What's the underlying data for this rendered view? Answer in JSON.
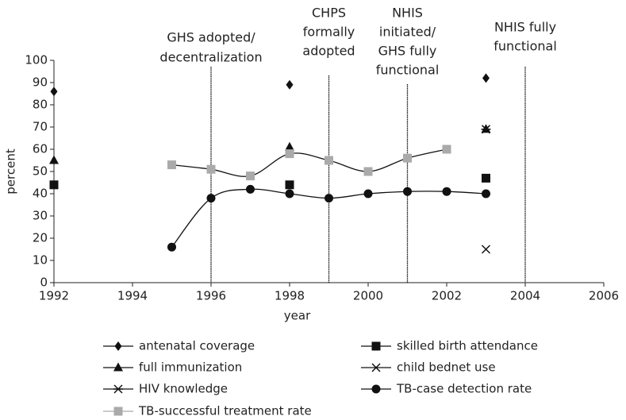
{
  "chart_data": {
    "type": "line",
    "xlabel": "year",
    "ylabel": "percent",
    "xlim": [
      1992,
      2006
    ],
    "xticks": [
      1992,
      1994,
      1996,
      1998,
      2000,
      2002,
      2004,
      2006
    ],
    "ylim": [
      0,
      100
    ],
    "yticks": [
      0,
      10,
      20,
      30,
      40,
      50,
      60,
      70,
      80,
      90,
      100
    ],
    "x": [
      1992,
      1995,
      1996,
      1997,
      1998,
      1999,
      2000,
      2001,
      2002,
      2003
    ],
    "series": [
      {
        "name": "antenatal coverage",
        "color": "#111",
        "marker": "diamond",
        "line": false,
        "values": [
          86,
          null,
          null,
          null,
          89,
          null,
          null,
          null,
          null,
          92
        ]
      },
      {
        "name": "skilled birth attendance",
        "color": "#111",
        "marker": "square",
        "line": false,
        "values": [
          44,
          null,
          null,
          null,
          44,
          null,
          null,
          null,
          null,
          47
        ]
      },
      {
        "name": "full immunization",
        "color": "#111",
        "marker": "triangle",
        "line": false,
        "values": [
          55,
          null,
          null,
          null,
          61,
          null,
          null,
          null,
          null,
          69
        ]
      },
      {
        "name": "child bednet use",
        "color": "#111",
        "marker": "x",
        "line": false,
        "values": [
          null,
          null,
          null,
          null,
          null,
          null,
          null,
          null,
          null,
          15
        ]
      },
      {
        "name": "HIV knowledge",
        "color": "#111",
        "marker": "asterisk",
        "line": false,
        "values": [
          null,
          null,
          null,
          null,
          null,
          null,
          null,
          null,
          null,
          69
        ]
      },
      {
        "name": "TB-case detection rate",
        "color": "#111",
        "marker": "circle",
        "line": true,
        "values": [
          null,
          16,
          38,
          42,
          40,
          38,
          40,
          41,
          41,
          40
        ]
      },
      {
        "name": "TB-successful treatment rate",
        "color": "#aaaaaa",
        "marker": "square",
        "line": true,
        "values": [
          null,
          53,
          51,
          48,
          58,
          55,
          50,
          56,
          60,
          null
        ]
      }
    ],
    "annotations": [
      {
        "x": 1996,
        "text": [
          "GHS adopted/",
          "decentralization"
        ]
      },
      {
        "x": 1999,
        "text": [
          "CHPS",
          "formally",
          "adopted"
        ]
      },
      {
        "x": 2001,
        "text": [
          "NHIS",
          "initiated/",
          "GHS fully",
          "functional"
        ]
      },
      {
        "x": 2004,
        "text": [
          "NHIS fully",
          "functional"
        ]
      }
    ]
  }
}
